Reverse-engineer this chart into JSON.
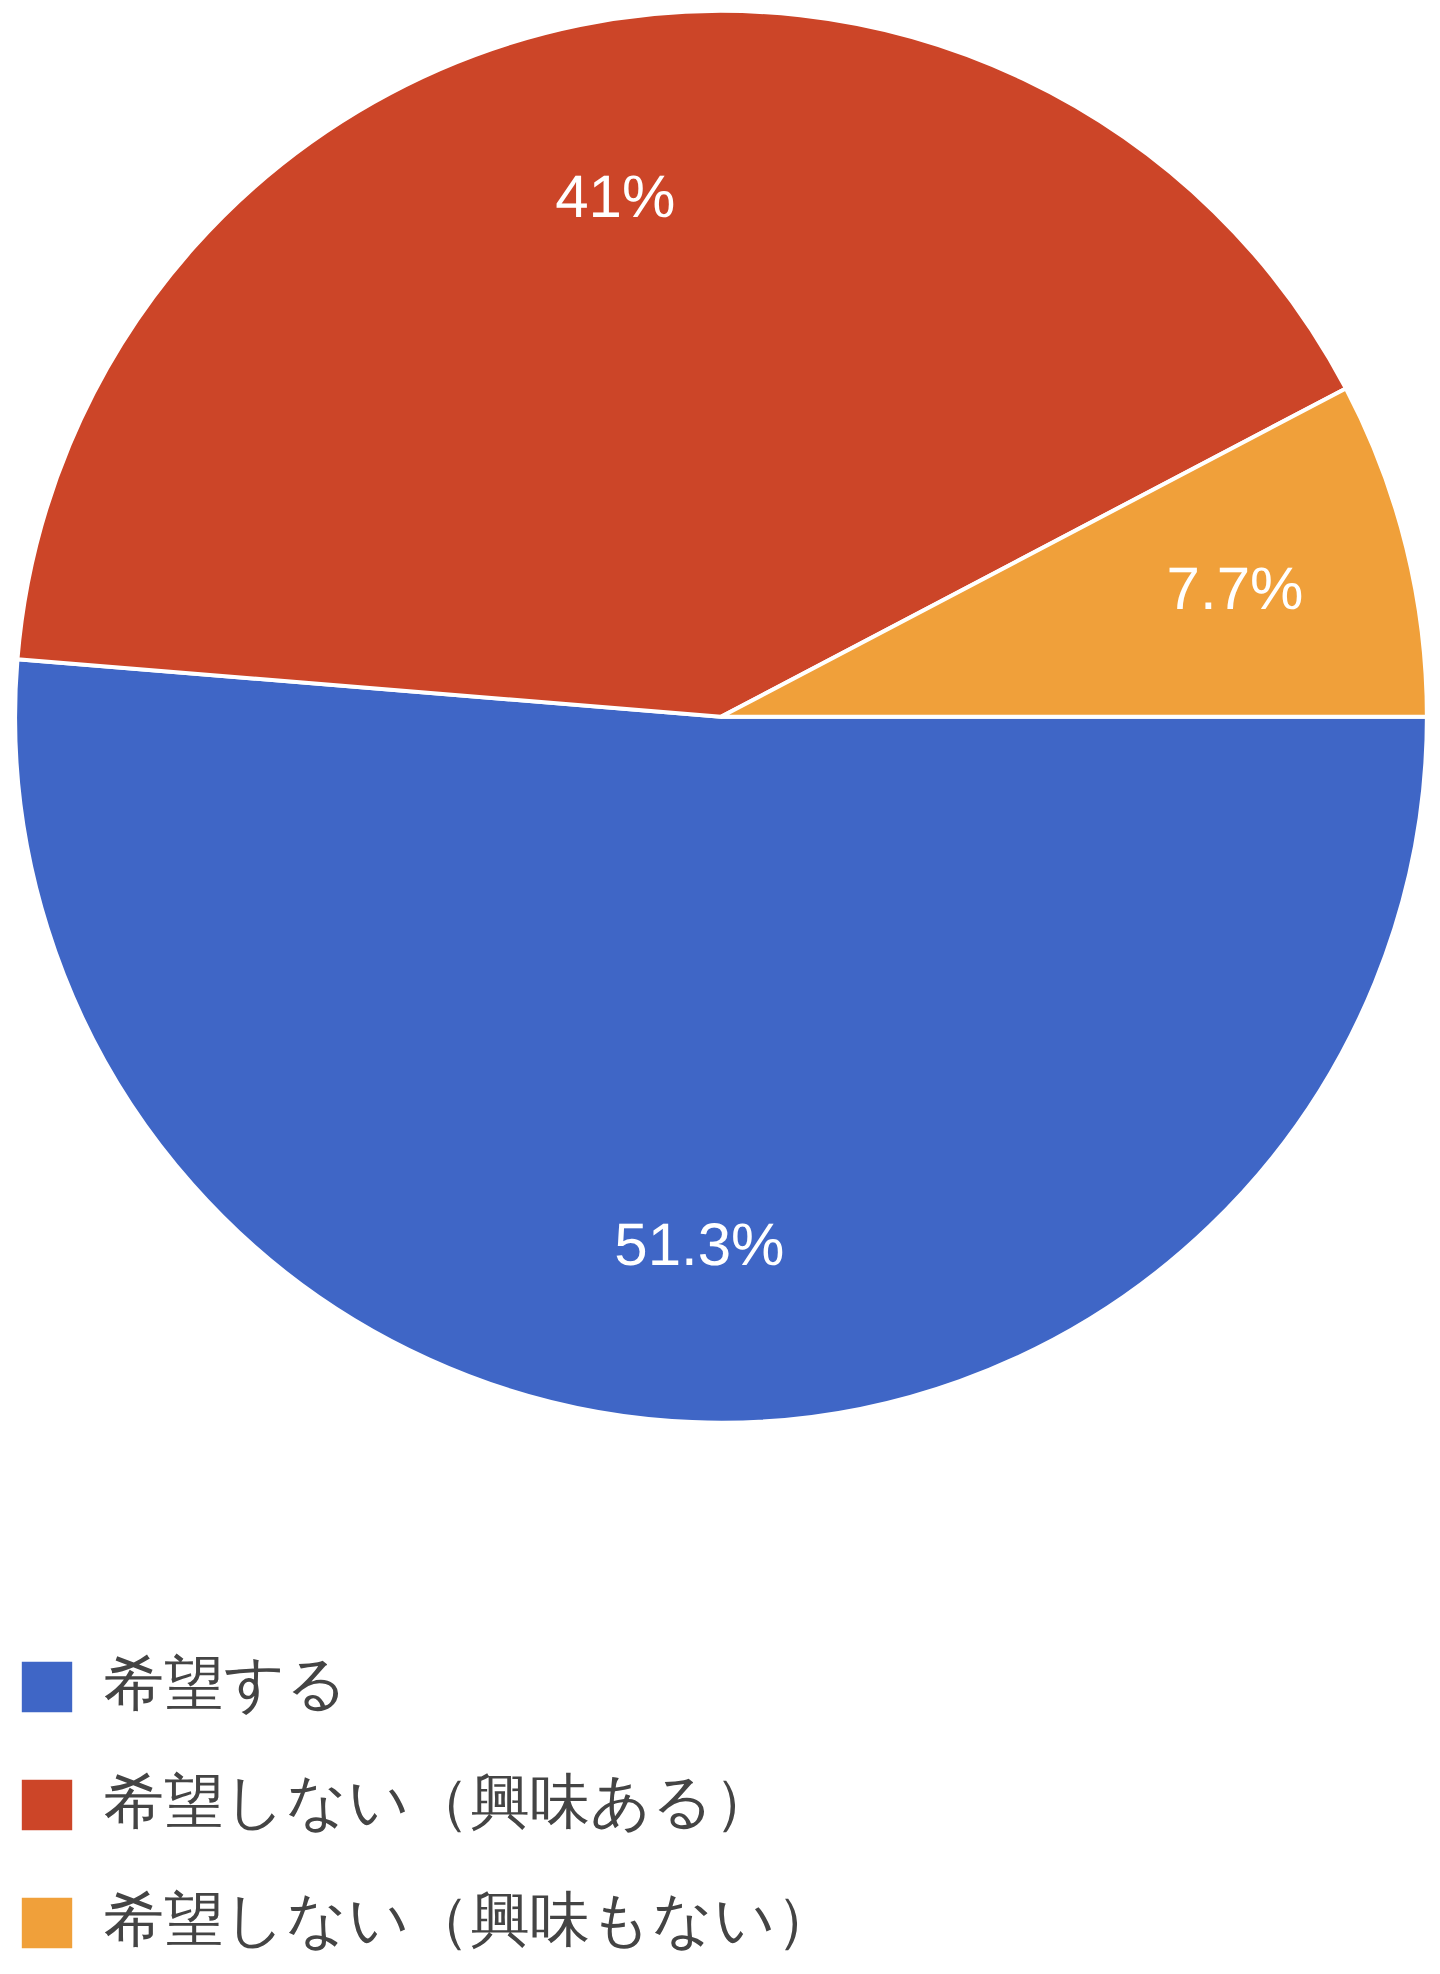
{
  "chart_data": {
    "type": "pie",
    "categories": [
      "希望する",
      "希望しない（興味ある）",
      "希望しない（興味もない）"
    ],
    "values": [
      51.3,
      41,
      7.7
    ],
    "colors": [
      "#3f66c6",
      "#cc4528",
      "#f0a03a"
    ],
    "value_labels": [
      "51.3%",
      "41%",
      "7.7%"
    ],
    "legend": "bottom"
  }
}
